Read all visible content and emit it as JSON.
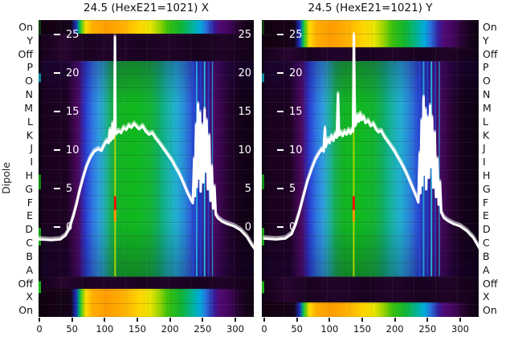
{
  "figure": {
    "ylabel": "Dipole",
    "row_labels": [
      "On",
      "Y",
      "Off",
      "P",
      "O",
      "N",
      "M",
      "L",
      "K",
      "J",
      "I",
      "H",
      "G",
      "F",
      "E",
      "D",
      "C",
      "B",
      "A",
      "Off",
      "X",
      "On"
    ],
    "colors": {
      "profile_line": "#ffffff",
      "background": "#ffffff"
    }
  },
  "chart_data": [
    {
      "type": "heatmap",
      "title": "24.5 (HexE21=1021) X",
      "rows": [
        "On",
        "Y",
        "Off",
        "P",
        "O",
        "N",
        "M",
        "L",
        "K",
        "J",
        "I",
        "H",
        "G",
        "F",
        "E",
        "D",
        "C",
        "B",
        "A",
        "Off",
        "X",
        "On"
      ],
      "x_ticks": [
        0,
        50,
        100,
        150,
        200,
        250,
        300
      ],
      "xlim": [
        0,
        330
      ],
      "inner_y_ticks": [
        25,
        20,
        15,
        10,
        5,
        0
      ],
      "right_y_ticks": [
        25,
        20,
        15,
        10,
        5,
        0
      ],
      "markers": [
        {
          "x": 116,
          "v1": -6.4,
          "v2": 14.8,
          "color": "#b6da00",
          "w": 2,
          "opacity": 0.9
        },
        {
          "x": 116,
          "v1": 2.2,
          "v2": 4.0,
          "color": "#ee1500",
          "w": 3,
          "opacity": 1
        },
        {
          "x": 116,
          "v1": 0.7,
          "v2": 2.2,
          "color": "#ff9500",
          "w": 3,
          "opacity": 1
        },
        {
          "x": 235,
          "v1": -6.4,
          "v2": 21.5,
          "color": "#2848cc",
          "w": 2,
          "opacity": 0.8
        },
        {
          "x": 241,
          "v1": -6.4,
          "v2": 21.5,
          "color": "#28b0e0",
          "w": 2,
          "opacity": 0.85
        },
        {
          "x": 247,
          "v1": -6.4,
          "v2": 21.5,
          "color": "#2040c8",
          "w": 2.5,
          "opacity": 0.85
        },
        {
          "x": 253,
          "v1": -6.4,
          "v2": 21.5,
          "color": "#30bce8",
          "w": 2,
          "opacity": 0.9
        },
        {
          "x": 259,
          "v1": -6.4,
          "v2": 21.5,
          "color": "#2646cc",
          "w": 2,
          "opacity": 0.8
        },
        {
          "x": 265,
          "v1": -6.4,
          "v2": 21.5,
          "color": "#28a0d8",
          "w": 1.5,
          "opacity": 0.8
        }
      ],
      "profile": {
        "color": "#ffffff",
        "points": [
          [
            0,
            -1.6
          ],
          [
            18,
            -1.7
          ],
          [
            32,
            -1.6
          ],
          [
            40,
            -1.1
          ],
          [
            46,
            -0.2
          ],
          [
            52,
            1.4
          ],
          [
            57,
            3.0
          ],
          [
            62,
            4.8
          ],
          [
            67,
            6.4
          ],
          [
            72,
            7.8
          ],
          [
            78,
            9.0
          ],
          [
            84,
            9.8
          ],
          [
            90,
            10.1
          ],
          [
            95,
            9.9
          ],
          [
            99,
            10.6
          ],
          [
            103,
            11.2
          ],
          [
            106,
            10.9
          ],
          [
            108,
            12.6
          ],
          [
            109,
            11.2
          ],
          [
            111,
            11.6
          ],
          [
            112,
            13.4
          ],
          [
            113,
            11.5
          ],
          [
            114,
            11.8
          ],
          [
            115,
            12.0
          ],
          [
            115.7,
            24.6
          ],
          [
            116.5,
            12.4
          ],
          [
            118,
            12.1
          ],
          [
            121,
            12.5
          ],
          [
            125,
            12.2
          ],
          [
            129,
            12.9
          ],
          [
            133,
            12.6
          ],
          [
            137,
            13.2
          ],
          [
            141,
            12.9
          ],
          [
            145,
            13.4
          ],
          [
            149,
            13.0
          ],
          [
            153,
            12.7
          ],
          [
            158,
            13.1
          ],
          [
            163,
            12.4
          ],
          [
            168,
            12.0
          ],
          [
            173,
            12.2
          ],
          [
            178,
            11.5
          ],
          [
            183,
            11.0
          ],
          [
            188,
            10.4
          ],
          [
            193,
            9.8
          ],
          [
            198,
            9.2
          ],
          [
            203,
            8.6
          ],
          [
            208,
            7.8
          ],
          [
            213,
            7.1
          ],
          [
            218,
            6.2
          ],
          [
            223,
            5.2
          ],
          [
            227,
            4.4
          ],
          [
            231,
            3.7
          ],
          [
            235,
            3.1
          ],
          [
            237,
            8.8
          ],
          [
            238,
            4.0
          ],
          [
            240,
            13.2
          ],
          [
            241,
            5.2
          ],
          [
            243,
            15.9
          ],
          [
            244,
            6.3
          ],
          [
            246,
            14.8
          ],
          [
            247,
            4.6
          ],
          [
            249,
            13.2
          ],
          [
            251,
            5.8
          ],
          [
            253,
            15.2
          ],
          [
            254,
            7.2
          ],
          [
            256,
            13.8
          ],
          [
            258,
            4.9
          ],
          [
            260,
            11.8
          ],
          [
            262,
            3.4
          ],
          [
            264,
            7.8
          ],
          [
            266,
            2.4
          ],
          [
            268,
            5.2
          ],
          [
            270,
            1.6
          ],
          [
            274,
            1.1
          ],
          [
            280,
            0.7
          ],
          [
            288,
            0.4
          ],
          [
            298,
            0.1
          ],
          [
            308,
            -0.4
          ],
          [
            318,
            -1.3
          ],
          [
            325,
            -2.3
          ],
          [
            330,
            -2.9
          ]
        ]
      }
    },
    {
      "type": "heatmap",
      "title": "24.5 (HexE21=1021) Y",
      "rows": [
        "On",
        "Y",
        "Off",
        "P",
        "O",
        "N",
        "M",
        "L",
        "K",
        "J",
        "I",
        "H",
        "G",
        "F",
        "E",
        "D",
        "C",
        "B",
        "A",
        "Off",
        "X",
        "On"
      ],
      "x_ticks": [
        0,
        50,
        100,
        150,
        200,
        250,
        300
      ],
      "xlim": [
        0,
        330
      ],
      "inner_y_ticks": [
        25,
        20,
        15,
        10,
        5,
        0
      ],
      "markers": [
        {
          "x": 137,
          "v1": -6.4,
          "v2": 14.5,
          "color": "#b6da00",
          "w": 2,
          "opacity": 0.9
        },
        {
          "x": 137,
          "v1": 2.2,
          "v2": 4.0,
          "color": "#ee1500",
          "w": 3,
          "opacity": 1
        },
        {
          "x": 137,
          "v1": 0.7,
          "v2": 2.2,
          "color": "#ff9500",
          "w": 3,
          "opacity": 1
        },
        {
          "x": 238,
          "v1": -6.4,
          "v2": 21.5,
          "color": "#2848cc",
          "w": 2,
          "opacity": 0.8
        },
        {
          "x": 244,
          "v1": -6.4,
          "v2": 21.5,
          "color": "#28b0e0",
          "w": 2,
          "opacity": 0.85
        },
        {
          "x": 250,
          "v1": -6.4,
          "v2": 21.5,
          "color": "#2040c8",
          "w": 2.5,
          "opacity": 0.85
        },
        {
          "x": 256,
          "v1": -6.4,
          "v2": 21.5,
          "color": "#30bce8",
          "w": 2,
          "opacity": 0.9
        },
        {
          "x": 262,
          "v1": -6.4,
          "v2": 21.5,
          "color": "#2646cc",
          "w": 2,
          "opacity": 0.8
        },
        {
          "x": 268,
          "v1": -6.4,
          "v2": 21.5,
          "color": "#28a0d8",
          "w": 1.5,
          "opacity": 0.8
        }
      ],
      "profile": {
        "color": "#ffffff",
        "points": [
          [
            0,
            -1.5
          ],
          [
            18,
            -1.6
          ],
          [
            32,
            -1.5
          ],
          [
            42,
            -0.9
          ],
          [
            48,
            0.3
          ],
          [
            54,
            2.0
          ],
          [
            60,
            4.0
          ],
          [
            66,
            5.9
          ],
          [
            72,
            7.4
          ],
          [
            78,
            8.7
          ],
          [
            84,
            9.6
          ],
          [
            88,
            10.1
          ],
          [
            91,
            9.8
          ],
          [
            93,
            12.8
          ],
          [
            94,
            10.4
          ],
          [
            96,
            10.9
          ],
          [
            98,
            11.4
          ],
          [
            100,
            10.9
          ],
          [
            103,
            11.8
          ],
          [
            106,
            11.2
          ],
          [
            109,
            12.1
          ],
          [
            111,
            11.6
          ],
          [
            113,
            17.2
          ],
          [
            114.5,
            11.9
          ],
          [
            117,
            12.3
          ],
          [
            120,
            11.8
          ],
          [
            123,
            12.4
          ],
          [
            126,
            12.0
          ],
          [
            129,
            12.6
          ],
          [
            132,
            12.1
          ],
          [
            134,
            12.6
          ],
          [
            136,
            12.4
          ],
          [
            137.2,
            24.9
          ],
          [
            138,
            19.6
          ],
          [
            139,
            13.1
          ],
          [
            141,
            13.5
          ],
          [
            143,
            14.5
          ],
          [
            145,
            13.7
          ],
          [
            147,
            14.7
          ],
          [
            149,
            13.9
          ],
          [
            152,
            14.3
          ],
          [
            155,
            13.5
          ],
          [
            159,
            13.8
          ],
          [
            163,
            13.1
          ],
          [
            167,
            13.4
          ],
          [
            171,
            12.7
          ],
          [
            175,
            12.3
          ],
          [
            179,
            12.5
          ],
          [
            184,
            11.7
          ],
          [
            189,
            11.1
          ],
          [
            194,
            10.5
          ],
          [
            199,
            9.9
          ],
          [
            204,
            9.1
          ],
          [
            209,
            8.4
          ],
          [
            214,
            7.6
          ],
          [
            219,
            6.7
          ],
          [
            224,
            5.7
          ],
          [
            229,
            4.7
          ],
          [
            233,
            3.9
          ],
          [
            236,
            3.2
          ],
          [
            238,
            9.5
          ],
          [
            239,
            4.4
          ],
          [
            241,
            13.8
          ],
          [
            242,
            5.4
          ],
          [
            244,
            16.8
          ],
          [
            245,
            6.8
          ],
          [
            247,
            15.2
          ],
          [
            248,
            4.9
          ],
          [
            250,
            14.2
          ],
          [
            252,
            6.4
          ],
          [
            254,
            15.7
          ],
          [
            255,
            7.8
          ],
          [
            257,
            14.2
          ],
          [
            259,
            5.1
          ],
          [
            261,
            12.2
          ],
          [
            263,
            3.9
          ],
          [
            265,
            8.8
          ],
          [
            267,
            2.9
          ],
          [
            269,
            5.8
          ],
          [
            271,
            1.9
          ],
          [
            275,
            1.2
          ],
          [
            281,
            0.8
          ],
          [
            290,
            0.4
          ],
          [
            300,
            0.1
          ],
          [
            310,
            -0.5
          ],
          [
            320,
            -1.4
          ],
          [
            327,
            -2.4
          ],
          [
            331,
            -3.0
          ]
        ]
      }
    }
  ]
}
